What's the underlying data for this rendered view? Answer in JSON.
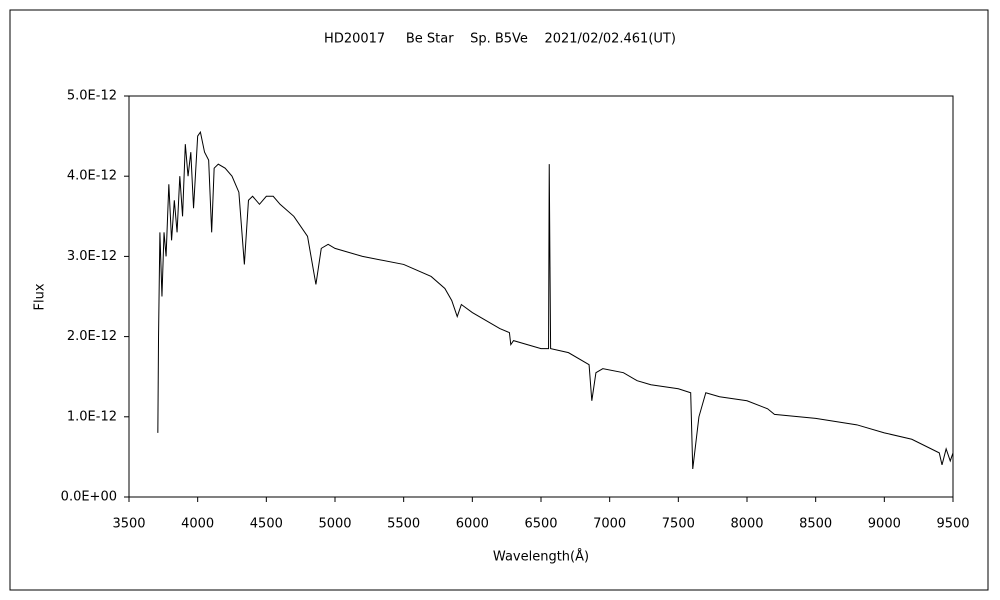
{
  "chart_data": {
    "type": "line",
    "title": "HD20017     Be Star    Sp. B5Ve    2021/02/02.461(UT)",
    "x_label": "Wavelength(Å)",
    "y_label": "Flux",
    "color": "#000000",
    "grid": false,
    "xlim": [
      3500,
      9500
    ],
    "xticks": [
      3500,
      4000,
      4500,
      5000,
      5500,
      6000,
      6500,
      7000,
      7500,
      8000,
      8500,
      9000,
      9500
    ],
    "ylim": [
      0,
      5e-12
    ],
    "yticks": [
      {
        "value": 0,
        "label": "0.0E+00"
      },
      {
        "value": 1e-12,
        "label": "1.0E-12"
      },
      {
        "value": 2e-12,
        "label": "2.0E-12"
      },
      {
        "value": 3e-12,
        "label": "3.0E-12"
      },
      {
        "value": 4e-12,
        "label": "4.0E-12"
      },
      {
        "value": 5e-12,
        "label": "5.0E-12"
      }
    ],
    "x": [
      3710,
      3715,
      3725,
      3740,
      3755,
      3770,
      3790,
      3810,
      3830,
      3850,
      3870,
      3890,
      3910,
      3930,
      3950,
      3970,
      4000,
      4020,
      4050,
      4080,
      4102,
      4120,
      4150,
      4200,
      4250,
      4300,
      4340,
      4370,
      4400,
      4450,
      4500,
      4550,
      4600,
      4700,
      4800,
      4861,
      4900,
      4950,
      5000,
      5200,
      5500,
      5700,
      5800,
      5850,
      5890,
      5920,
      6000,
      6200,
      6270,
      6280,
      6300,
      6500,
      6555,
      6560,
      6565,
      6570,
      6700,
      6850,
      6870,
      6900,
      6950,
      7100,
      7200,
      7300,
      7500,
      7590,
      7605,
      7650,
      7700,
      7800,
      8000,
      8150,
      8200,
      8500,
      8800,
      9000,
      9200,
      9400,
      9420,
      9450,
      9480,
      9500
    ],
    "values": [
      8e-13,
      2e-12,
      3.3e-12,
      2.5e-12,
      3.3e-12,
      3e-12,
      3.9e-12,
      3.2e-12,
      3.7e-12,
      3.3e-12,
      4e-12,
      3.5e-12,
      4.4e-12,
      4e-12,
      4.3e-12,
      3.6e-12,
      4.5e-12,
      4.55e-12,
      4.3e-12,
      4.2e-12,
      3.3e-12,
      4.1e-12,
      4.15e-12,
      4.1e-12,
      4e-12,
      3.8e-12,
      2.9e-12,
      3.7e-12,
      3.75e-12,
      3.65e-12,
      3.75e-12,
      3.75e-12,
      3.65e-12,
      3.5e-12,
      3.25e-12,
      2.65e-12,
      3.1e-12,
      3.15e-12,
      3.1e-12,
      3e-12,
      2.9e-12,
      2.75e-12,
      2.6e-12,
      2.45e-12,
      2.25e-12,
      2.4e-12,
      2.3e-12,
      2.1e-12,
      2.05e-12,
      1.9e-12,
      1.95e-12,
      1.85e-12,
      1.85e-12,
      4.15e-12,
      2.95e-12,
      1.85e-12,
      1.8e-12,
      1.65e-12,
      1.2e-12,
      1.55e-12,
      1.6e-12,
      1.55e-12,
      1.45e-12,
      1.4e-12,
      1.35e-12,
      1.3e-12,
      3.5e-13,
      1e-12,
      1.3e-12,
      1.25e-12,
      1.2e-12,
      1.1e-12,
      1.03e-12,
      9.8e-13,
      9e-13,
      8e-13,
      7.2e-13,
      5.5e-13,
      4e-13,
      6e-13,
      4.5e-13,
      5.5e-13
    ]
  }
}
